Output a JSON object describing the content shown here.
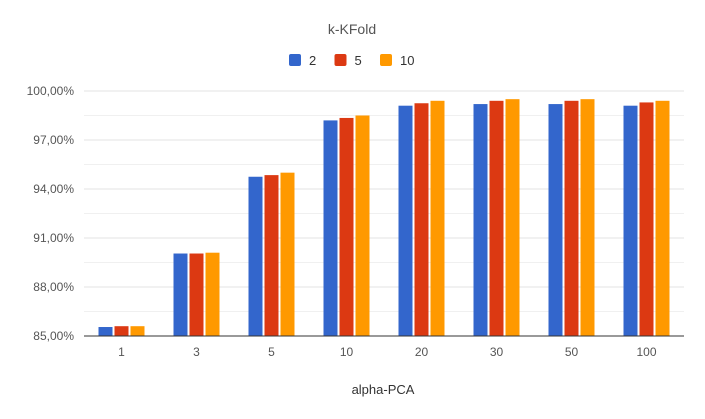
{
  "chart_data": {
    "type": "bar",
    "title": "k-KFold",
    "xlabel": "alpha-PCA",
    "ylabel": "",
    "categories": [
      "1",
      "3",
      "5",
      "10",
      "20",
      "30",
      "50",
      "100"
    ],
    "series": [
      {
        "name": "2",
        "color": "#3366cc",
        "values": [
          85.55,
          90.05,
          94.75,
          98.2,
          99.1,
          99.2,
          99.2,
          99.1
        ]
      },
      {
        "name": "5",
        "color": "#dc3912",
        "values": [
          85.6,
          90.05,
          94.85,
          98.35,
          99.25,
          99.4,
          99.4,
          99.3
        ]
      },
      {
        "name": "10",
        "color": "#ff9900",
        "values": [
          85.6,
          90.1,
          95.0,
          98.5,
          99.4,
          99.5,
          99.5,
          99.4
        ]
      }
    ],
    "ylim": [
      85,
      100
    ],
    "yticks": [
      85,
      88,
      91,
      94,
      97,
      100
    ],
    "ytick_labels": [
      "85,00%",
      "88,00%",
      "91,00%",
      "94,00%",
      "97,00%",
      "100,00%"
    ],
    "grid": true,
    "legend_position": "top-center"
  }
}
